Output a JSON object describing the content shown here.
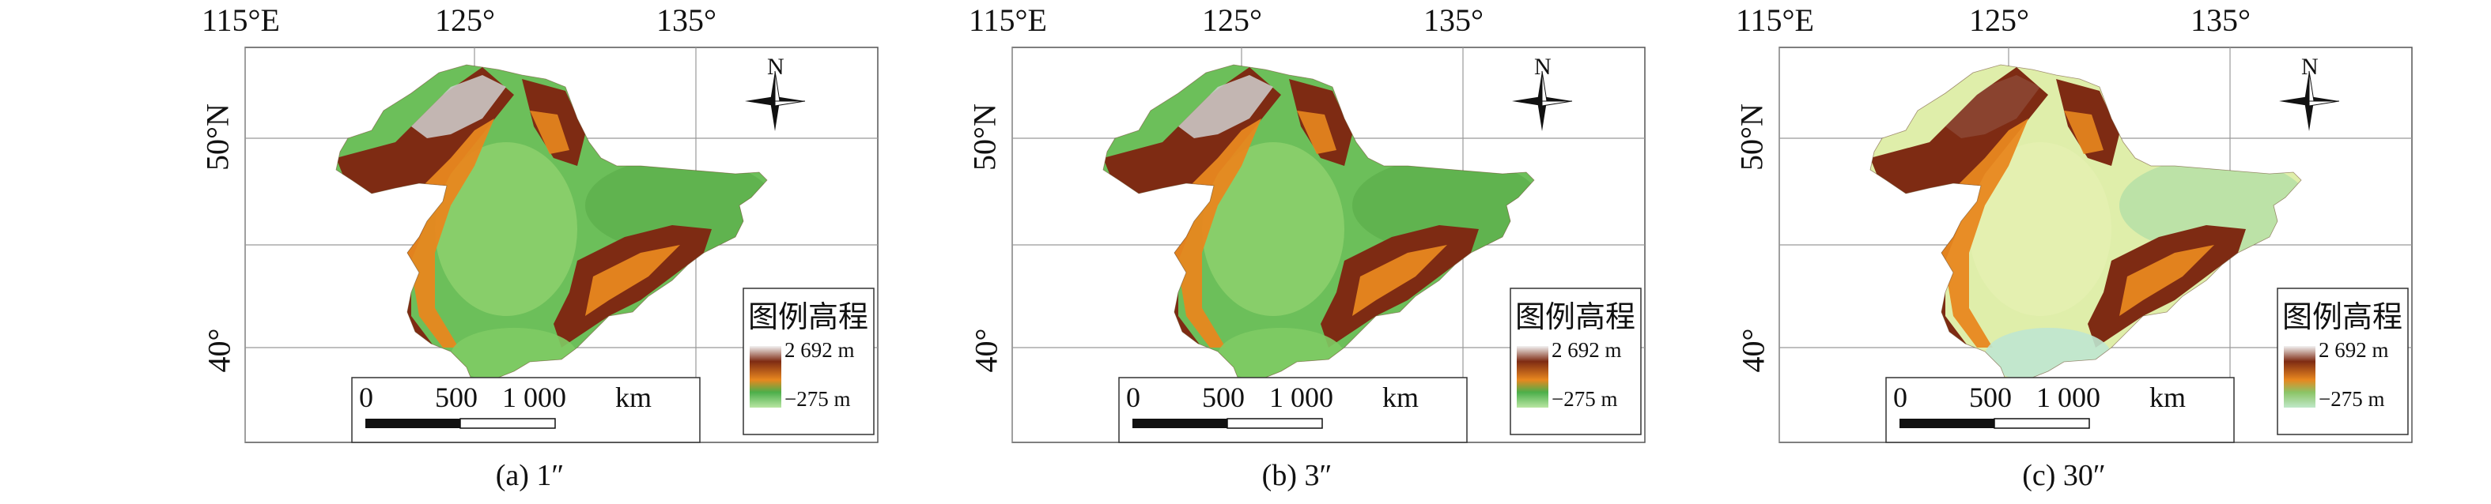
{
  "panels": [
    {
      "id": "a",
      "caption": "(a) 1″",
      "legend_top_color": "#7a2a14"
    },
    {
      "id": "b",
      "caption": "(b) 3″",
      "legend_top_color": "#7a2a14"
    },
    {
      "id": "c",
      "caption": "(c) 30″",
      "legend_top_color": "#8b3a1a"
    }
  ],
  "longitude_labels": [
    "115°E",
    "125°",
    "135°"
  ],
  "latitude_labels": [
    "50°N",
    "40°"
  ],
  "north_arrow_label": "N",
  "legend": {
    "title": "图例高程",
    "max_label": "2 692 m",
    "min_label": "−275 m"
  },
  "scale_bar": {
    "tick_0": "0",
    "tick_500": "500",
    "tick_1000": "1 000",
    "unit": "km"
  },
  "colors": {
    "lowland_dense": "#6cbf5a",
    "lowland_pale": "#dfeeaa",
    "upland_orange": "#e8871f",
    "mountain_brown": "#7e2b13",
    "peak_gray": "#cfcfcf"
  }
}
